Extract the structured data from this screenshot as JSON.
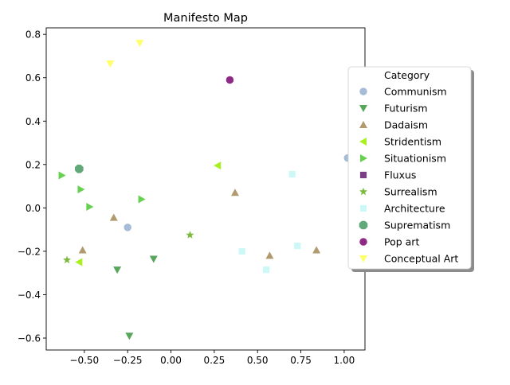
{
  "chart_data": {
    "type": "scatter",
    "title": "Manifesto Map",
    "xlabel": "",
    "ylabel": "",
    "xlim": [
      -0.72,
      1.12
    ],
    "ylim": [
      -0.655,
      0.83
    ],
    "x_ticks": [
      -0.5,
      -0.25,
      0.0,
      0.25,
      0.5,
      0.75,
      1.0
    ],
    "x_tick_labels": [
      "−0.50",
      "−0.25",
      "0.00",
      "0.25",
      "0.50",
      "0.75",
      "1.00"
    ],
    "y_ticks": [
      -0.6,
      -0.4,
      -0.2,
      0.0,
      0.2,
      0.4,
      0.6,
      0.8
    ],
    "y_tick_labels": [
      "−0.6",
      "−0.4",
      "−0.2",
      "0.0",
      "0.2",
      "0.4",
      "0.6",
      "0.8"
    ],
    "grid": false,
    "legend": {
      "title": "Category",
      "placement": "right"
    },
    "series": [
      {
        "name": "Communism",
        "marker": "circle",
        "color": "#a7bcd6",
        "points": [
          [
            -0.25,
            -0.09
          ],
          [
            1.02,
            0.23
          ]
        ]
      },
      {
        "name": "Futurism",
        "marker": "triangle-down",
        "color": "#58a55c",
        "points": [
          [
            -0.31,
            -0.285
          ],
          [
            -0.1,
            -0.235
          ],
          [
            -0.24,
            -0.59
          ]
        ]
      },
      {
        "name": "Dadaism",
        "marker": "triangle-up",
        "color": "#b09a6e",
        "points": [
          [
            -0.51,
            -0.195
          ],
          [
            -0.33,
            -0.045
          ],
          [
            0.37,
            0.07
          ],
          [
            0.57,
            -0.22
          ],
          [
            0.84,
            -0.195
          ]
        ]
      },
      {
        "name": "Stridentism",
        "marker": "triangle-left",
        "color": "#a8f020",
        "points": [
          [
            0.27,
            0.195
          ],
          [
            -0.53,
            -0.25
          ]
        ]
      },
      {
        "name": "Situationism",
        "marker": "triangle-right",
        "color": "#66d151",
        "points": [
          [
            -0.63,
            0.15
          ],
          [
            -0.52,
            0.085
          ],
          [
            -0.47,
            0.005
          ],
          [
            -0.17,
            0.04
          ]
        ]
      },
      {
        "name": "Fluxus",
        "marker": "square",
        "color": "#7b3f86",
        "points": []
      },
      {
        "name": "Surrealism",
        "marker": "star",
        "color": "#7cba3c",
        "points": [
          [
            -0.6,
            -0.24
          ],
          [
            0.11,
            -0.125
          ]
        ]
      },
      {
        "name": "Architecture",
        "marker": "square",
        "color": "#cdf8f8",
        "points": [
          [
            0.7,
            0.155
          ],
          [
            0.41,
            -0.2
          ],
          [
            0.73,
            -0.175
          ],
          [
            0.55,
            -0.285
          ]
        ]
      },
      {
        "name": "Suprematism",
        "marker": "octagon",
        "color": "#62a87a",
        "points": [
          [
            -0.53,
            0.18
          ]
        ]
      },
      {
        "name": "Pop art",
        "marker": "circle",
        "color": "#8e2985",
        "points": [
          [
            0.34,
            0.59
          ]
        ]
      },
      {
        "name": "Conceptual Art",
        "marker": "triangle-down",
        "color": "#ffff6a",
        "points": [
          [
            -0.35,
            0.665
          ],
          [
            -0.18,
            0.76
          ]
        ]
      }
    ]
  }
}
